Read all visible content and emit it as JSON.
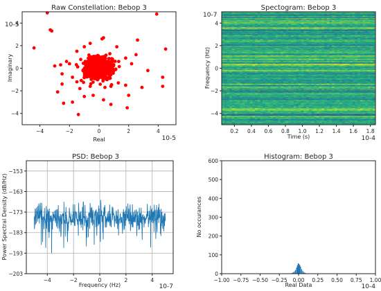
{
  "figure": {
    "background": "#ffffff",
    "axis_color": "#222222"
  },
  "chart_data": [
    {
      "id": "constellation",
      "type": "scatter",
      "title": "Raw Constellation: Bebop 3",
      "xlabel": "Real",
      "ylabel": "Imaginary",
      "x_scale_label": "10-5",
      "y_scale_label": "10-5",
      "xlim": [
        -5.2,
        5.2
      ],
      "ylim": [
        -5.0,
        5.0
      ],
      "xticks": [
        -4,
        -2,
        0,
        2,
        4
      ],
      "xtick_labels": [
        "−4",
        "−2",
        "0",
        "2",
        "4"
      ],
      "yticks": [
        -4,
        -2,
        0,
        2,
        4
      ],
      "ytick_labels": [
        "−4",
        "−2",
        "0",
        "2",
        "4"
      ],
      "grid": false,
      "color": "#ff0000",
      "cluster": {
        "center": [
          0,
          0
        ],
        "spread": 0.45,
        "count": 900
      },
      "outliers": [
        [
          -3.5,
          4.9
        ],
        [
          3.9,
          4.8
        ],
        [
          -3.3,
          3.4
        ],
        [
          -3.2,
          3.3
        ],
        [
          -4.4,
          1.8
        ],
        [
          4.5,
          1.7
        ],
        [
          2.6,
          2.5
        ],
        [
          0.2,
          2.6
        ],
        [
          0.3,
          2.7
        ],
        [
          -0.6,
          2.2
        ],
        [
          -3.0,
          0.2
        ],
        [
          -2.6,
          0.3
        ],
        [
          -2.2,
          0.6
        ],
        [
          -2.0,
          0.4
        ],
        [
          -1.5,
          1.5
        ],
        [
          -1.0,
          1.9
        ],
        [
          1.2,
          1.9
        ],
        [
          1.8,
          0.9
        ],
        [
          2.2,
          0.4
        ],
        [
          2.5,
          1.2
        ],
        [
          -2.5,
          -0.5
        ],
        [
          -1.8,
          -0.8
        ],
        [
          -1.5,
          -1.2
        ],
        [
          -1.3,
          -1.8
        ],
        [
          -1.0,
          -2.5
        ],
        [
          -0.6,
          -1.6
        ],
        [
          -2.5,
          -1.4
        ],
        [
          -2.8,
          -2.1
        ],
        [
          -2.4,
          -3.1
        ],
        [
          -1.4,
          -4.1
        ],
        [
          0.8,
          -1.6
        ],
        [
          1.3,
          -1.3
        ],
        [
          1.8,
          -1.5
        ],
        [
          2.9,
          -1.7
        ],
        [
          2.0,
          -2.4
        ],
        [
          0.3,
          -2.8
        ],
        [
          0.8,
          -3.2
        ],
        [
          0.4,
          -1.7
        ],
        [
          1.9,
          -3.5
        ],
        [
          3.3,
          -0.2
        ],
        [
          4.3,
          -0.8
        ],
        [
          4.3,
          -1.6
        ],
        [
          -0.4,
          -2.4
        ],
        [
          -1.8,
          -3.0
        ]
      ]
    },
    {
      "id": "spectrogram",
      "type": "heatmap",
      "title": "Spectogram: Bebop 3",
      "xlabel": "Time (s)",
      "ylabel": "Frequency (Hz)",
      "x_scale_label": "10-4",
      "y_scale_label": "10-7",
      "xlim": [
        0.05,
        1.86
      ],
      "ylim": [
        -5.0,
        5.0
      ],
      "xticks": [
        0.2,
        0.4,
        0.6,
        0.8,
        1.0,
        1.2,
        1.4,
        1.6,
        1.8
      ],
      "xtick_labels": [
        "0.2",
        "0.4",
        "0.6",
        "0.8",
        "1.0",
        "1.2",
        "1.4",
        "1.6",
        "1.8"
      ],
      "yticks": [
        -4,
        -2,
        0,
        2,
        4
      ],
      "ytick_labels": [
        "−4",
        "−2",
        "0",
        "2",
        "4"
      ],
      "colormap": "viridis",
      "value_range": [
        0.35,
        0.9
      ],
      "time_bins": 60,
      "freq_bins": 140
    },
    {
      "id": "psd",
      "type": "line",
      "title": "PSD: Bebop 3",
      "xlabel": "Frequency (Hz)",
      "ylabel": "Power Spectral Density (dB/Hz)",
      "x_scale_label": "10-7",
      "xlim": [
        -5.6,
        5.6
      ],
      "ylim": [
        -203,
        -148
      ],
      "xticks": [
        -4,
        -2,
        0,
        2,
        4
      ],
      "xtick_labels": [
        "−4",
        "−2",
        "0",
        "2",
        "4"
      ],
      "yticks": [
        -203,
        -193,
        -183,
        -173,
        -163,
        -153
      ],
      "ytick_labels": [
        "−203",
        "−193",
        "−183",
        "−173",
        "−163",
        "−153"
      ],
      "grid": true,
      "color": "#1f77b4",
      "series": [
        {
          "x_range": [
            -5.0,
            5.0
          ],
          "mean": -175.5,
          "range": [
            -197,
            -167
          ],
          "points": 512
        }
      ]
    },
    {
      "id": "histogram",
      "type": "bar",
      "title": "Histogram: Bebop 3",
      "xlabel": "Real Data",
      "ylabel": "No occurances",
      "x_scale_label": "10-4",
      "xlim": [
        -1.0,
        1.0
      ],
      "ylim": [
        0,
        600
      ],
      "xticks": [
        -1.0,
        -0.75,
        -0.5,
        -0.25,
        0.0,
        0.25,
        0.5,
        0.75,
        1.0
      ],
      "xtick_labels": [
        "−1.00",
        "−0.75",
        "−0.50",
        "−0.25",
        "0.00",
        "0.25",
        "0.50",
        "0.75",
        "1.00"
      ],
      "yticks": [
        0,
        100,
        200,
        300,
        400,
        500,
        600
      ],
      "ytick_labels": [
        "0",
        "100",
        "200",
        "300",
        "400",
        "500",
        "600"
      ],
      "color": "#1f77b4",
      "bins": [
        {
          "x": -0.115,
          "v": 1
        },
        {
          "x": -0.1,
          "v": 2
        },
        {
          "x": -0.085,
          "v": 4
        },
        {
          "x": -0.07,
          "v": 7
        },
        {
          "x": -0.055,
          "v": 12
        },
        {
          "x": -0.04,
          "v": 20
        },
        {
          "x": -0.025,
          "v": 33
        },
        {
          "x": -0.015,
          "v": 44
        },
        {
          "x": -0.005,
          "v": 55
        },
        {
          "x": 0.005,
          "v": 52
        },
        {
          "x": 0.015,
          "v": 46
        },
        {
          "x": 0.025,
          "v": 38
        },
        {
          "x": 0.04,
          "v": 24
        },
        {
          "x": 0.055,
          "v": 14
        },
        {
          "x": 0.07,
          "v": 8
        },
        {
          "x": 0.085,
          "v": 4
        },
        {
          "x": 0.1,
          "v": 2
        },
        {
          "x": 0.115,
          "v": 1
        }
      ],
      "bin_width": 0.012
    }
  ]
}
